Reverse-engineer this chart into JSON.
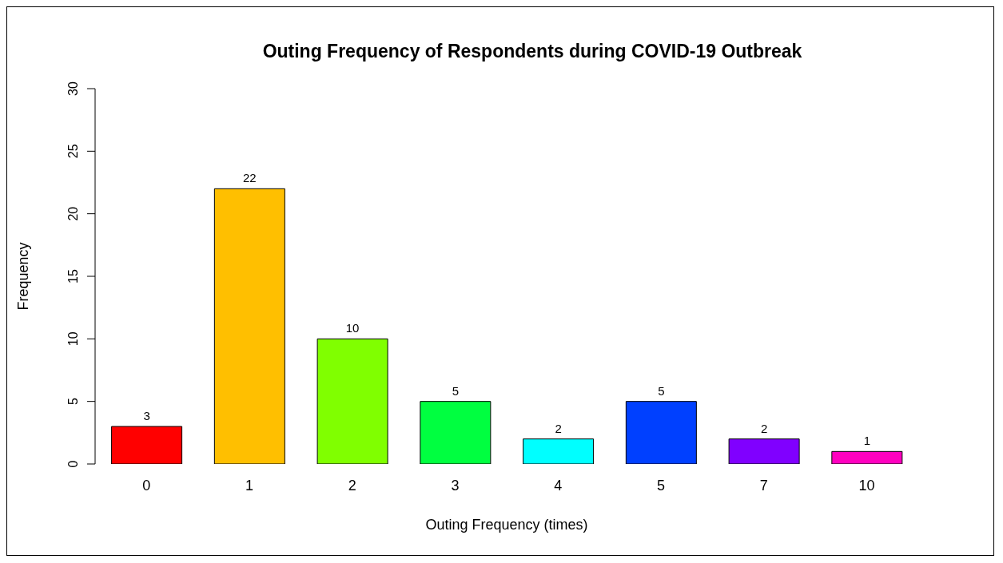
{
  "chart_data": {
    "type": "bar",
    "title": "Outing Frequency of Respondents during COVID-19 Outbreak",
    "xlabel": "Outing Frequency (times)",
    "ylabel": "Frequency",
    "categories": [
      "0",
      "1",
      "2",
      "3",
      "4",
      "5",
      "7",
      "10"
    ],
    "values": [
      3,
      22,
      10,
      5,
      2,
      5,
      2,
      1
    ],
    "colors": [
      "#ff0000",
      "#ffbf00",
      "#80ff00",
      "#00ff40",
      "#00ffff",
      "#0040ff",
      "#8000ff",
      "#ff00bf"
    ],
    "ylim": [
      0,
      30
    ],
    "yticks": [
      0,
      5,
      10,
      15,
      20,
      25,
      30
    ],
    "data_labels": true,
    "grid": false,
    "legend": false
  }
}
